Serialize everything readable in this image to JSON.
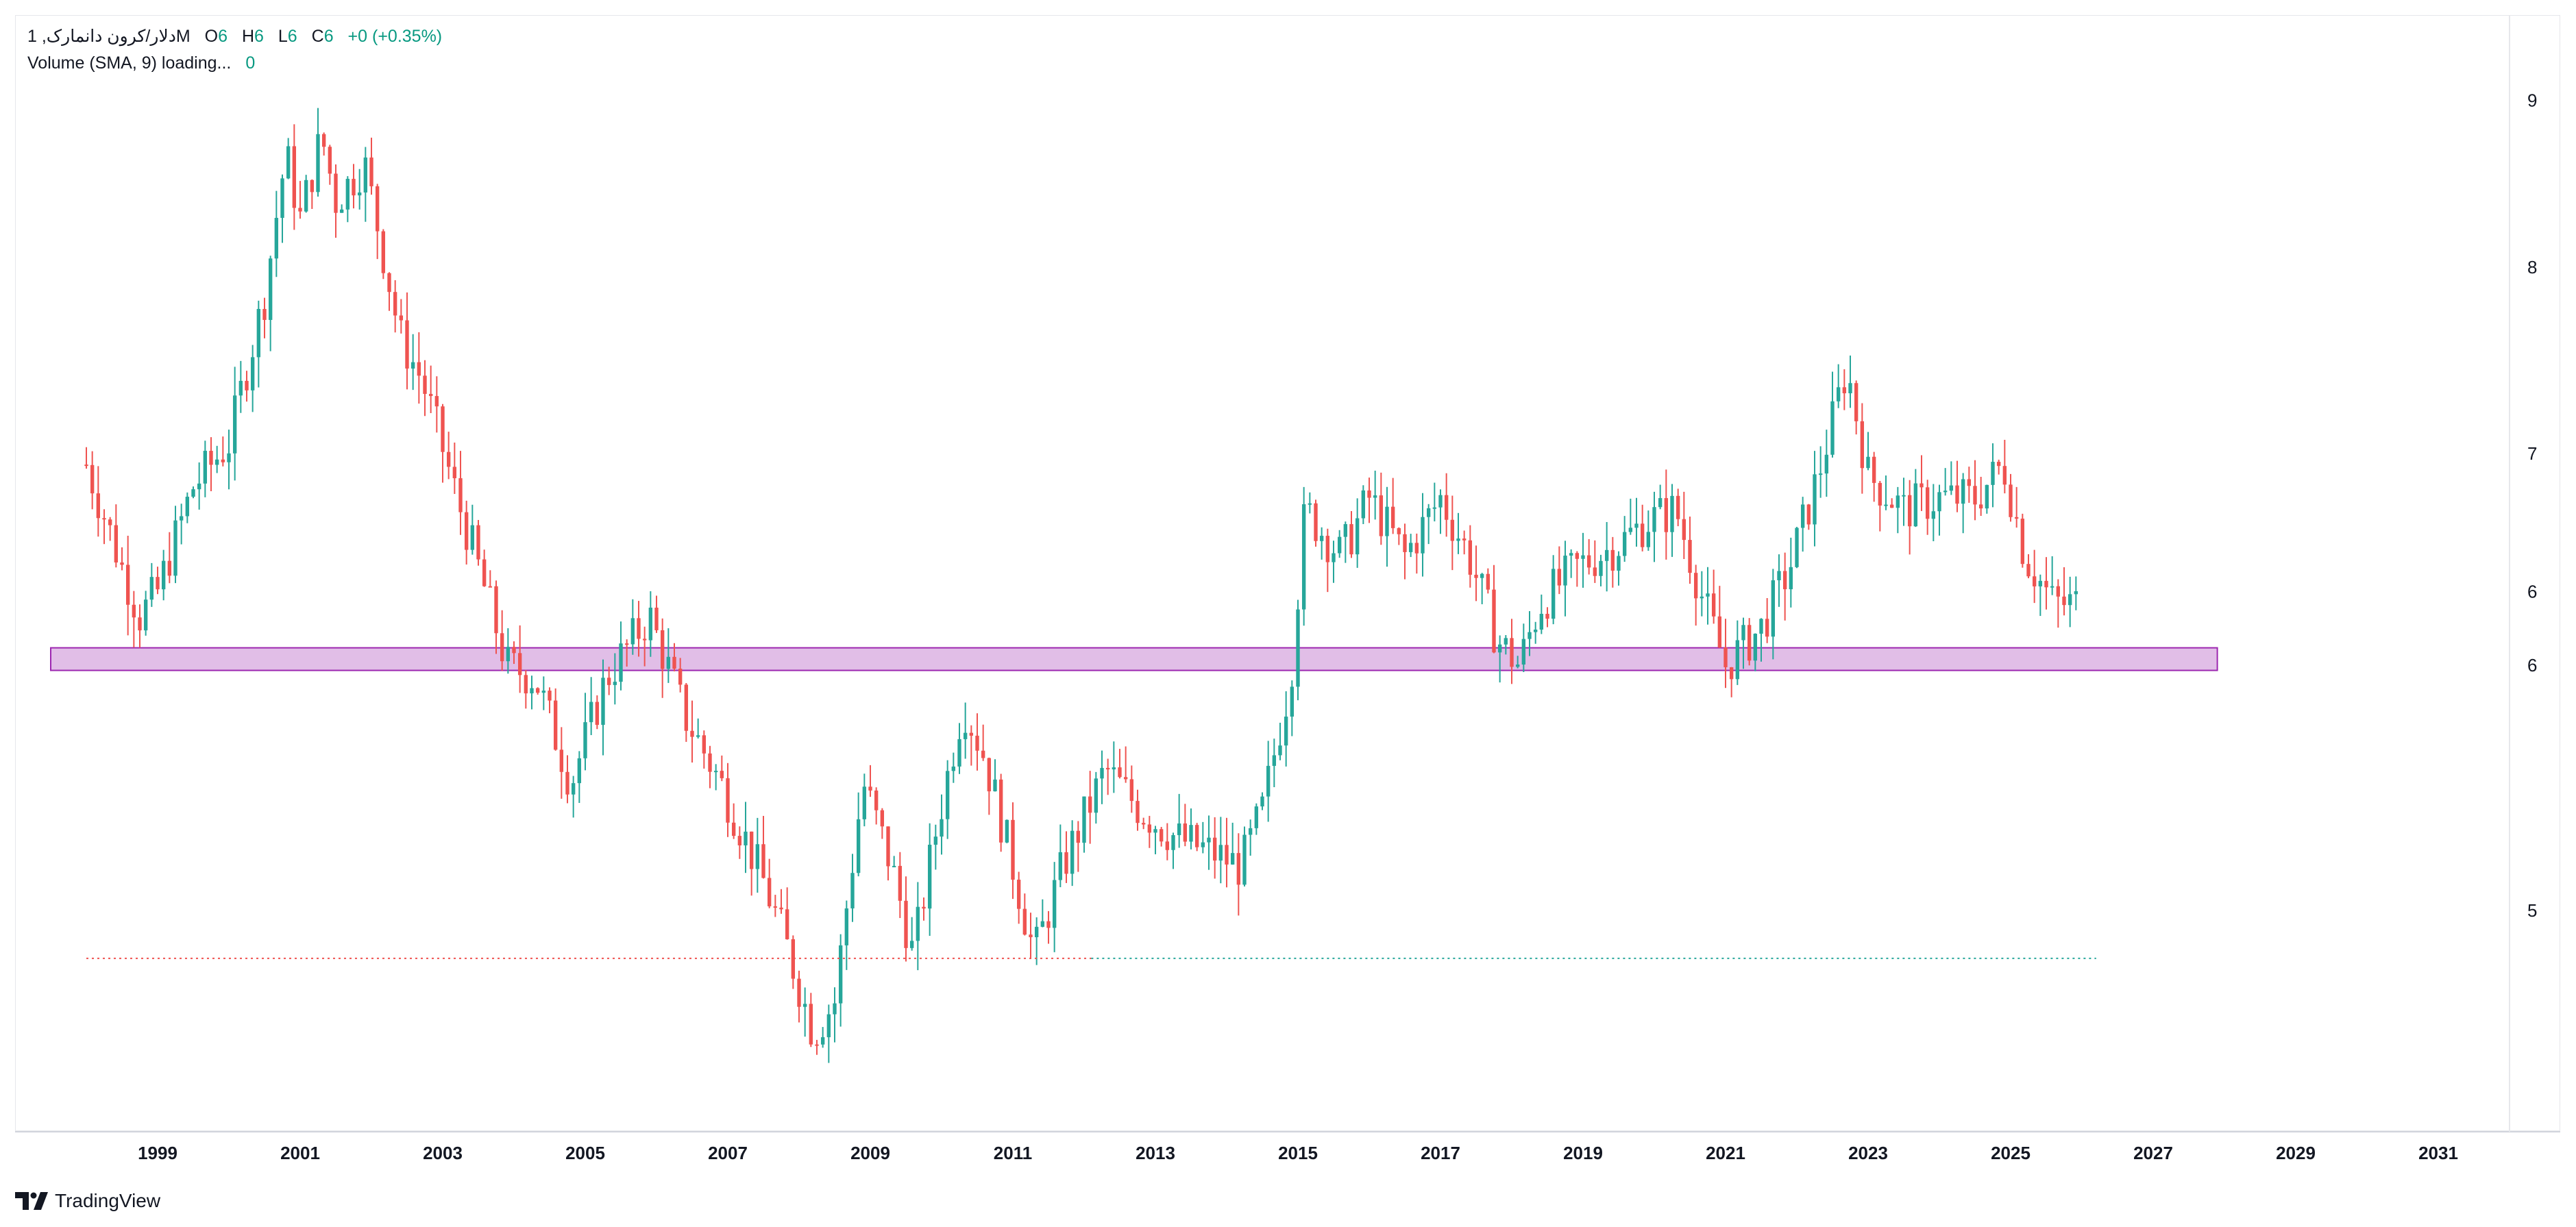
{
  "legend": {
    "symbol": "دلار/کرون دانمارک, 1M",
    "o_label": "O",
    "o_value": "6",
    "h_label": "H",
    "h_value": "6",
    "l_label": "L",
    "l_value": "6",
    "c_label": "C",
    "c_value": "6",
    "change": "+0 (+0.35%)",
    "volume_label": "Volume (SMA, 9) loading...",
    "volume_value": "0"
  },
  "branding": {
    "name": "TradingView",
    "icon": "tradingview-logo-icon"
  },
  "colors": {
    "up": "#26a69a",
    "down": "#ef5350",
    "zone_fill": "#e1bee7",
    "zone_border": "#9c27b0",
    "axis_text": "#131722",
    "grid_border": "#e6e7eb"
  },
  "chart_data": {
    "type": "candlestick",
    "interval": "1M",
    "symbol": "دلار/کرون دانمارک",
    "x_range": [
      1997.0,
      2032.0
    ],
    "x_ticks": [
      "1999",
      "2001",
      "2003",
      "2005",
      "2007",
      "2009",
      "2011",
      "2013",
      "2015",
      "2017",
      "2019",
      "2021",
      "2023",
      "2025",
      "2027",
      "2029",
      "2031"
    ],
    "y_ticks": [
      {
        "label": "9",
        "value": 8.9
      },
      {
        "label": "8",
        "value": 8.0
      },
      {
        "label": "7",
        "value": 7.1
      },
      {
        "label": "6",
        "value": 6.5
      },
      {
        "label": "6",
        "value": 6.2
      },
      {
        "label": "5",
        "value": 5.3
      }
    ],
    "y_range": [
      4.6,
      9.4
    ],
    "scale": "log",
    "grid": false,
    "zone": {
      "x_start": 1997.5,
      "x_end": 2027.9,
      "y_low": 6.18,
      "y_high": 6.27
    },
    "dotted_line": {
      "x_start": 1998.0,
      "x_end": 2026.2,
      "y": 5.14
    },
    "anchors": [
      [
        1998.0,
        7.05
      ],
      [
        1998.5,
        6.6
      ],
      [
        1998.75,
        6.4
      ],
      [
        1999.0,
        6.5
      ],
      [
        1999.5,
        6.95
      ],
      [
        2000.0,
        7.15
      ],
      [
        2000.5,
        7.85
      ],
      [
        2000.8,
        8.6
      ],
      [
        2001.0,
        8.25
      ],
      [
        2001.3,
        8.7
      ],
      [
        2001.5,
        8.35
      ],
      [
        2001.9,
        8.55
      ],
      [
        2002.4,
        7.65
      ],
      [
        2002.7,
        7.45
      ],
      [
        2003.2,
        6.9
      ],
      [
        2003.5,
        6.6
      ],
      [
        2003.9,
        6.2
      ],
      [
        2004.3,
        6.15
      ],
      [
        2004.8,
        5.75
      ],
      [
        2005.3,
        6.15
      ],
      [
        2005.9,
        6.4
      ],
      [
        2006.4,
        6.0
      ],
      [
        2006.9,
        5.75
      ],
      [
        2007.5,
        5.4
      ],
      [
        2007.8,
        5.2
      ],
      [
        2008.2,
        4.9
      ],
      [
        2008.5,
        5.0
      ],
      [
        2008.9,
        5.75
      ],
      [
        2009.3,
        5.45
      ],
      [
        2009.6,
        5.15
      ],
      [
        2009.9,
        5.55
      ],
      [
        2010.3,
        6.05
      ],
      [
        2010.6,
        5.85
      ],
      [
        2010.9,
        5.55
      ],
      [
        2011.3,
        5.15
      ],
      [
        2011.7,
        5.45
      ],
      [
        2012.3,
        5.8
      ],
      [
        2012.8,
        5.65
      ],
      [
        2013.3,
        5.55
      ],
      [
        2013.8,
        5.5
      ],
      [
        2014.2,
        5.45
      ],
      [
        2014.5,
        5.65
      ],
      [
        2014.9,
        6.15
      ],
      [
        2015.1,
        6.85
      ],
      [
        2015.6,
        6.65
      ],
      [
        2016.0,
        6.9
      ],
      [
        2016.5,
        6.65
      ],
      [
        2017.0,
        6.9
      ],
      [
        2017.4,
        6.65
      ],
      [
        2017.8,
        6.3
      ],
      [
        2018.1,
        6.2
      ],
      [
        2018.4,
        6.45
      ],
      [
        2018.9,
        6.6
      ],
      [
        2019.5,
        6.7
      ],
      [
        2019.9,
        6.8
      ],
      [
        2020.3,
        6.85
      ],
      [
        2020.7,
        6.45
      ],
      [
        2021.0,
        6.2
      ],
      [
        2021.5,
        6.35
      ],
      [
        2021.9,
        6.6
      ],
      [
        2022.3,
        7.0
      ],
      [
        2022.7,
        7.5
      ],
      [
        2023.0,
        7.0
      ],
      [
        2023.5,
        6.85
      ],
      [
        2024.0,
        6.9
      ],
      [
        2024.5,
        6.9
      ],
      [
        2024.9,
        7.05
      ],
      [
        2025.2,
        6.65
      ],
      [
        2025.6,
        6.45
      ],
      [
        2025.95,
        6.45
      ]
    ]
  }
}
